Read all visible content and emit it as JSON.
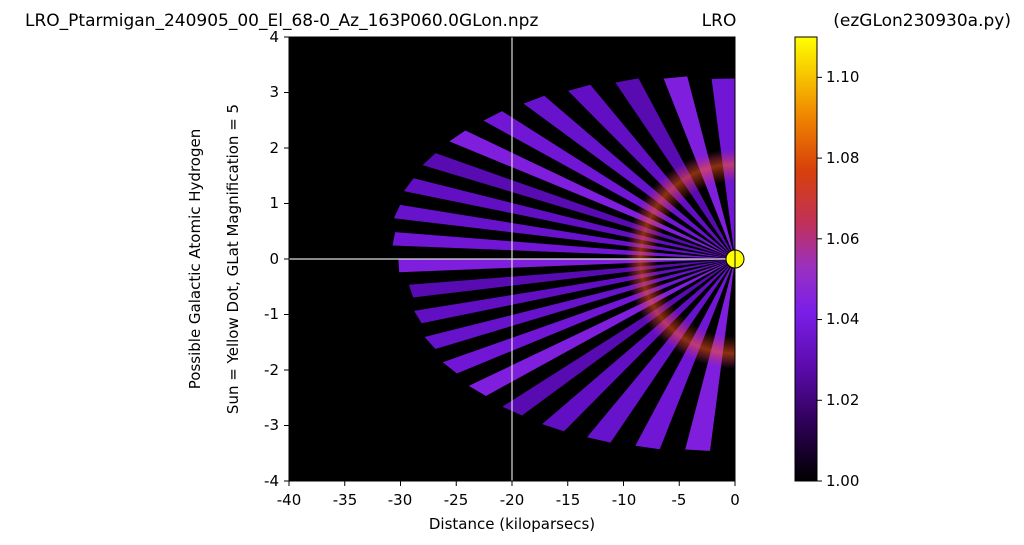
{
  "chart_data": {
    "type": "heatmap",
    "title_left": "LRO_Ptarmigan_240905_00_El_68-0_Az_163P060.0GLon.npz",
    "title_center": "LRO",
    "title_right": "(ezGLon230930a.py)",
    "xlabel": "Distance (kiloparsecs)",
    "ylabel_line1": "Possible Galactic Atomic Hydrogen",
    "ylabel_line2": "Sun = Yellow Dot, GLat Magnification = 5",
    "xlim": [
      -40,
      0
    ],
    "ylim": [
      -4,
      4
    ],
    "xticks": [
      "-40",
      "-35",
      "-30",
      "-25",
      "-20",
      "-15",
      "-10",
      "-5",
      "0"
    ],
    "yticks": [
      "4",
      "3",
      "2",
      "1",
      "0",
      "-1",
      "-2",
      "-3",
      "-4"
    ],
    "colorbar": {
      "colormap": "gnuplot",
      "range": [
        1.0,
        1.11
      ],
      "ticks": [
        "1.00",
        "1.02",
        "1.04",
        "1.06",
        "1.08",
        "1.10"
      ]
    },
    "sun": {
      "x": 0,
      "y": 0,
      "color": "#ffff00"
    },
    "crosshair": {
      "x": -20,
      "y": 0,
      "color": "#dddddd"
    },
    "fan": {
      "center": [
        0,
        0
      ],
      "outer_edge_distance_kpc": -32,
      "bright_ring_distance_kpc": -8.5,
      "wedge_count": 44,
      "base_value": 1.02,
      "ring_value": 1.06,
      "background_color": "#000000"
    }
  }
}
